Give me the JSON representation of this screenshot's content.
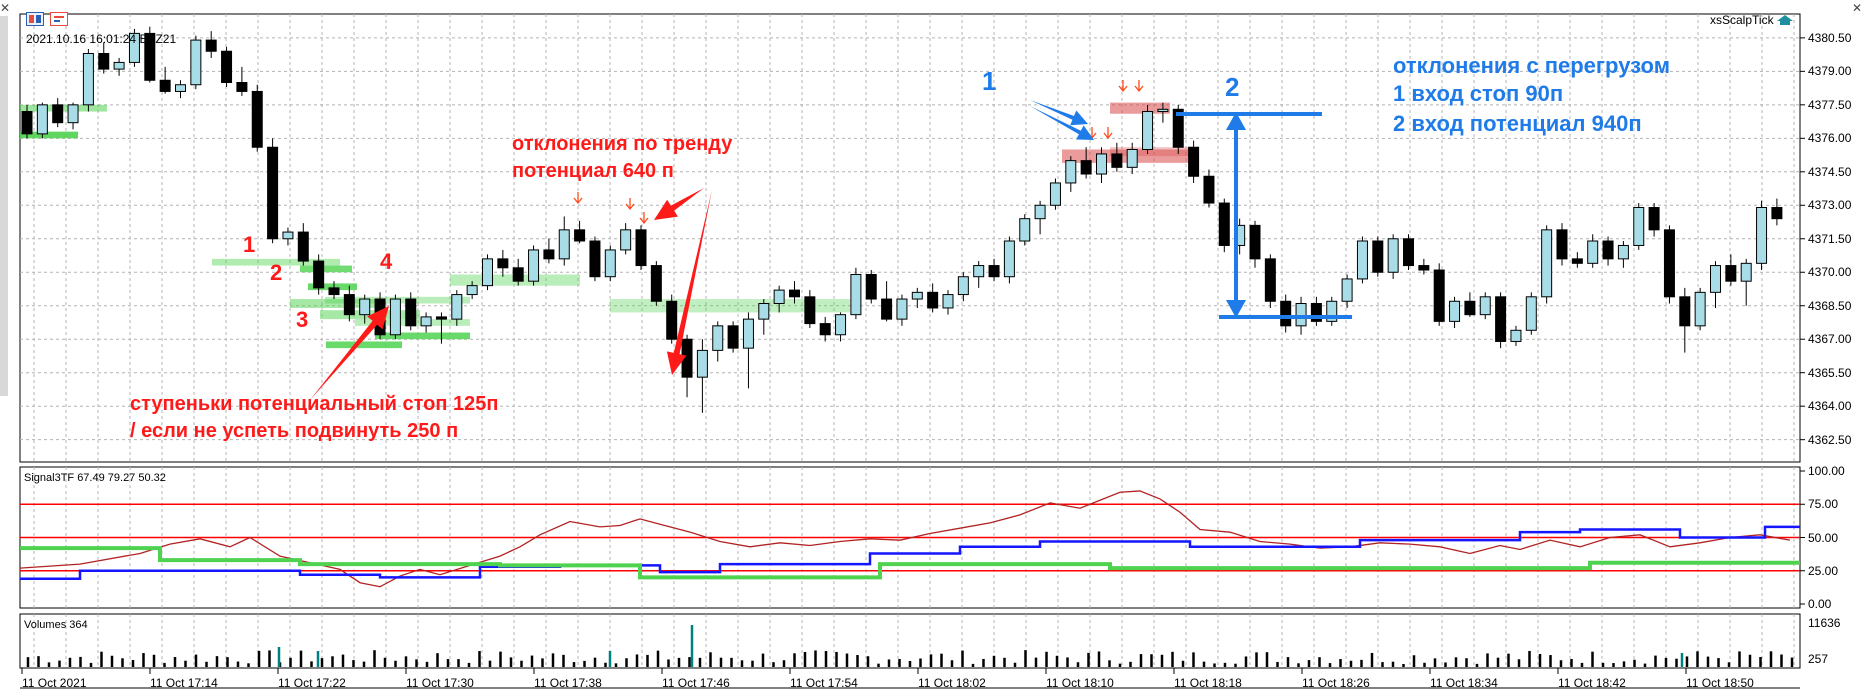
{
  "header": {
    "timestamp": "2021.10.16 16:01:24",
    "symbol": "EPZ21",
    "indicator_name": "xsScalpTick"
  },
  "price_axis": {
    "labels": [
      "4380.50",
      "4379.00",
      "4377.50",
      "4376.00",
      "4374.50",
      "4373.00",
      "4371.50",
      "4370.00",
      "4368.50",
      "4367.00",
      "4365.50",
      "4364.00",
      "4362.50"
    ],
    "min": 4361.5,
    "max": 4381.3
  },
  "signal_panel": {
    "title": "Signal3TF 67.49 79.27 50.32",
    "axis_labels": [
      "100.00",
      "75.00",
      "50.00",
      "25.00",
      "0.00"
    ],
    "levels": [
      75,
      50,
      25
    ],
    "colors": {
      "red": "#ff0000",
      "darkred": "#b22222",
      "blue": "#1515ff",
      "green": "#4fd24f"
    }
  },
  "volume_panel": {
    "title": "Volumes 364",
    "axis_labels": [
      "11636",
      "257"
    ]
  },
  "time_axis": {
    "labels": [
      "11 Oct 2021",
      "11 Oct 17:14",
      "11 Oct 17:22",
      "11 Oct 17:30",
      "11 Oct 17:38",
      "11 Oct 17:46",
      "11 Oct 17:54",
      "11 Oct 18:02",
      "11 Oct 18:10",
      "11 Oct 18:18",
      "11 Oct 18:26",
      "11 Oct 18:34",
      "11 Oct 18:42",
      "11 Oct 18:50"
    ]
  },
  "annotations": {
    "trend_title": "отклонения по тренду",
    "trend_potential": "потенциал 640 п",
    "steps_line1": "ступеньки потенциальный стоп 125п",
    "steps_line2": "/ если не успеть подвинуть 250 п",
    "n1": "1",
    "n2": "2",
    "n3": "3",
    "n4": "4",
    "blue1": "1",
    "blue2": "2",
    "overload_title": "отклонения с перегрузом",
    "entry1": "1 вход стоп 90п",
    "entry2": "2 вход потенциал 940п"
  },
  "colors": {
    "bull": "#a8dde8",
    "bear": "#000000",
    "grid": "#b4b4b4",
    "green_zone": "#4fd24f",
    "red_zone": "#d94a4a",
    "annotation_red": "#ff1a1a",
    "annotation_blue": "#1e7be8",
    "volume": "#000000",
    "volume_spike": "#008080"
  },
  "candles": [
    [
      4377.2,
      4377.5,
      4376.0,
      4376.2
    ],
    [
      4376.2,
      4377.6,
      4376.0,
      4377.5
    ],
    [
      4377.5,
      4377.8,
      4376.5,
      4376.7
    ],
    [
      4376.7,
      4377.6,
      4376.4,
      4377.5
    ],
    [
      4377.5,
      4380.0,
      4377.2,
      4379.8
    ],
    [
      4379.8,
      4380.3,
      4378.9,
      4379.1
    ],
    [
      4379.1,
      4379.6,
      4378.8,
      4379.4
    ],
    [
      4379.4,
      4380.9,
      4379.2,
      4380.7
    ],
    [
      4380.7,
      4381.0,
      4378.5,
      4378.6
    ],
    [
      4378.6,
      4379.2,
      4378.0,
      4378.1
    ],
    [
      4378.1,
      4378.6,
      4377.8,
      4378.4
    ],
    [
      4378.4,
      4380.6,
      4378.2,
      4380.4
    ],
    [
      4380.4,
      4380.8,
      4379.6,
      4379.9
    ],
    [
      4379.9,
      4380.1,
      4378.3,
      4378.5
    ],
    [
      4378.5,
      4379.2,
      4377.9,
      4378.1
    ],
    [
      4378.1,
      4378.4,
      4375.4,
      4375.6
    ],
    [
      4375.6,
      4376.0,
      4371.3,
      4371.5
    ],
    [
      4371.5,
      4372.0,
      4371.2,
      4371.8
    ],
    [
      4371.8,
      4372.2,
      4370.3,
      4370.5
    ],
    [
      4370.5,
      4370.8,
      4369.0,
      4369.3
    ],
    [
      4369.3,
      4369.6,
      4368.8,
      4369.0
    ],
    [
      4369.0,
      4369.4,
      4367.8,
      4368.1
    ],
    [
      4368.1,
      4369.0,
      4367.7,
      4368.8
    ],
    [
      4368.8,
      4369.1,
      4367.0,
      4367.2
    ],
    [
      4367.2,
      4369.0,
      4367.0,
      4368.8
    ],
    [
      4368.8,
      4369.1,
      4367.4,
      4367.6
    ],
    [
      4367.6,
      4368.2,
      4367.3,
      4368.0
    ],
    [
      4368.0,
      4368.2,
      4366.8,
      4367.9
    ],
    [
      4367.9,
      4369.2,
      4367.6,
      4369.0
    ],
    [
      4369.0,
      4369.6,
      4368.8,
      4369.4
    ],
    [
      4369.4,
      4370.8,
      4369.2,
      4370.6
    ],
    [
      4370.6,
      4371.0,
      4369.8,
      4370.2
    ],
    [
      4370.2,
      4370.6,
      4369.4,
      4369.6
    ],
    [
      4369.6,
      4371.2,
      4369.4,
      4371.0
    ],
    [
      4371.0,
      4371.5,
      4370.4,
      4370.6
    ],
    [
      4370.6,
      4372.5,
      4370.3,
      4371.9
    ],
    [
      4371.9,
      4372.3,
      4371.3,
      4371.4
    ],
    [
      4371.4,
      4371.6,
      4369.6,
      4369.8
    ],
    [
      4369.8,
      4371.2,
      4369.6,
      4371.0
    ],
    [
      4371.0,
      4372.2,
      4370.8,
      4371.9
    ],
    [
      4371.9,
      4372.1,
      4370.1,
      4370.3
    ],
    [
      4370.3,
      4370.5,
      4368.5,
      4368.7
    ],
    [
      4368.7,
      4369.0,
      4366.8,
      4367.0
    ],
    [
      4367.0,
      4367.2,
      4364.4,
      4365.3
    ],
    [
      4365.3,
      4367.0,
      4363.7,
      4366.5
    ],
    [
      4366.5,
      4367.8,
      4366.0,
      4367.6
    ],
    [
      4367.6,
      4367.8,
      4366.4,
      4366.6
    ],
    [
      4366.6,
      4368.2,
      4364.8,
      4367.9
    ],
    [
      4367.9,
      4368.8,
      4367.2,
      4368.6
    ],
    [
      4368.6,
      4369.4,
      4368.2,
      4369.2
    ],
    [
      4369.2,
      4369.6,
      4368.6,
      4368.9
    ],
    [
      4368.9,
      4369.2,
      4367.5,
      4367.7
    ],
    [
      4367.7,
      4368.0,
      4366.9,
      4367.2
    ],
    [
      4367.2,
      4368.2,
      4366.9,
      4368.1
    ],
    [
      4368.1,
      4370.2,
      4367.9,
      4369.9
    ],
    [
      4369.9,
      4370.1,
      4368.6,
      4368.8
    ],
    [
      4368.8,
      4369.6,
      4367.8,
      4367.9
    ],
    [
      4367.9,
      4369.0,
      4367.6,
      4368.8
    ],
    [
      4368.8,
      4369.3,
      4368.4,
      4369.1
    ],
    [
      4369.1,
      4369.5,
      4368.2,
      4368.4
    ],
    [
      4368.4,
      4369.2,
      4368.1,
      4369.0
    ],
    [
      4369.0,
      4370.0,
      4368.7,
      4369.8
    ],
    [
      4369.8,
      4370.5,
      4369.3,
      4370.3
    ],
    [
      4370.3,
      4370.6,
      4369.6,
      4369.8
    ],
    [
      4369.8,
      4371.6,
      4369.5,
      4371.4
    ],
    [
      4371.4,
      4372.6,
      4371.2,
      4372.4
    ],
    [
      4372.4,
      4373.2,
      4371.7,
      4373.0
    ],
    [
      4373.0,
      4374.2,
      4372.8,
      4374.0
    ],
    [
      4374.0,
      4375.2,
      4373.6,
      4375.0
    ],
    [
      4375.0,
      4375.6,
      4374.2,
      4374.4
    ],
    [
      4374.4,
      4375.6,
      4374.0,
      4375.3
    ],
    [
      4375.3,
      4375.8,
      4374.5,
      4374.7
    ],
    [
      4374.7,
      4375.8,
      4374.4,
      4375.5
    ],
    [
      4375.5,
      4377.5,
      4375.3,
      4377.2
    ],
    [
      4377.2,
      4377.6,
      4376.7,
      4377.3
    ],
    [
      4377.3,
      4377.5,
      4375.3,
      4375.6
    ],
    [
      4375.6,
      4375.9,
      4374.0,
      4374.3
    ],
    [
      4374.3,
      4374.6,
      4372.9,
      4373.1
    ],
    [
      4373.1,
      4373.3,
      4370.9,
      4371.2
    ],
    [
      4371.2,
      4372.4,
      4370.8,
      4372.1
    ],
    [
      4372.1,
      4372.3,
      4370.2,
      4370.6
    ],
    [
      4370.6,
      4370.8,
      4368.4,
      4368.7
    ],
    [
      4368.7,
      4369.0,
      4367.3,
      4367.6
    ],
    [
      4367.6,
      4368.9,
      4367.2,
      4368.6
    ],
    [
      4368.6,
      4368.9,
      4367.6,
      4367.8
    ],
    [
      4367.8,
      4368.9,
      4367.6,
      4368.7
    ],
    [
      4368.7,
      4369.9,
      4368.4,
      4369.7
    ],
    [
      4369.7,
      4371.6,
      4369.5,
      4371.4
    ],
    [
      4371.4,
      4371.6,
      4369.8,
      4370.0
    ],
    [
      4370.0,
      4371.7,
      4369.7,
      4371.5
    ],
    [
      4371.5,
      4371.7,
      4370.1,
      4370.3
    ],
    [
      4370.3,
      4370.6,
      4369.9,
      4370.1
    ],
    [
      4370.1,
      4370.4,
      4367.6,
      4367.8
    ],
    [
      4367.8,
      4368.9,
      4367.5,
      4368.7
    ],
    [
      4368.7,
      4369.1,
      4368.0,
      4368.1
    ],
    [
      4368.1,
      4369.1,
      4367.9,
      4368.9
    ],
    [
      4368.9,
      4369.1,
      4366.6,
      4366.9
    ],
    [
      4366.9,
      4367.6,
      4366.7,
      4367.4
    ],
    [
      4367.4,
      4369.1,
      4367.2,
      4368.9
    ],
    [
      4368.9,
      4372.1,
      4368.6,
      4371.9
    ],
    [
      4371.9,
      4372.2,
      4370.3,
      4370.6
    ],
    [
      4370.6,
      4370.9,
      4370.2,
      4370.4
    ],
    [
      4370.4,
      4371.7,
      4370.2,
      4371.4
    ],
    [
      4371.4,
      4371.6,
      4370.3,
      4370.6
    ],
    [
      4370.6,
      4371.4,
      4370.2,
      4371.2
    ],
    [
      4371.2,
      4373.1,
      4371.0,
      4372.9
    ],
    [
      4372.9,
      4373.1,
      4371.6,
      4371.9
    ],
    [
      4371.9,
      4372.1,
      4368.6,
      4368.9
    ],
    [
      4368.9,
      4369.3,
      4366.4,
      4367.6
    ],
    [
      4367.6,
      4369.3,
      4367.4,
      4369.1
    ],
    [
      4369.1,
      4370.5,
      4368.4,
      4370.3
    ],
    [
      4370.3,
      4370.8,
      4369.4,
      4369.6
    ],
    [
      4369.6,
      4370.6,
      4368.5,
      4370.4
    ],
    [
      4370.4,
      4373.2,
      4370.1,
      4372.9
    ],
    [
      4372.9,
      4373.3,
      4372.1,
      4372.4
    ]
  ]
}
